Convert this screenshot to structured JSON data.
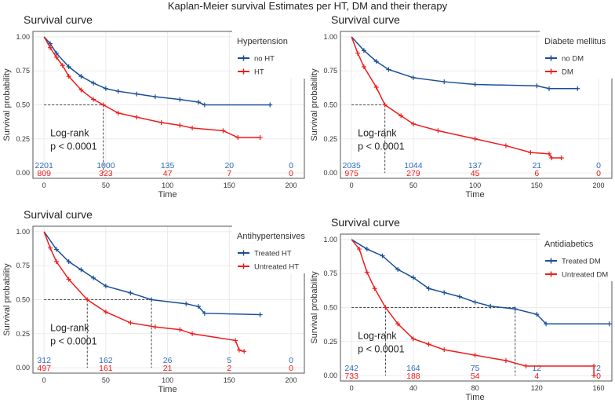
{
  "title": "Kaplan-Meier survival Estimates per HT, DM and their therapy",
  "chart_data": [
    {
      "type": "line",
      "subtype": "kaplan-meier",
      "title": "Survival curve",
      "xlabel": "Time",
      "ylabel": "Survival probability",
      "xlim": [
        0,
        200
      ],
      "xticks": [
        0,
        50,
        100,
        150,
        200
      ],
      "ylim": [
        0,
        1
      ],
      "yticks": [
        "0.00",
        "0.25",
        "0.50",
        "0.75",
        "1.00"
      ],
      "legend_title": "Hypertension",
      "legend_position": "top-right",
      "annotation": [
        "Log-rank",
        "p < 0.0001"
      ],
      "series": [
        {
          "name": "no HT",
          "color": "#1a4f96",
          "points": [
            [
              0,
              1
            ],
            [
              5,
              0.95
            ],
            [
              10,
              0.88
            ],
            [
              20,
              0.78
            ],
            [
              30,
              0.71
            ],
            [
              40,
              0.66
            ],
            [
              50,
              0.62
            ],
            [
              60,
              0.6
            ],
            [
              75,
              0.58
            ],
            [
              90,
              0.56
            ],
            [
              110,
              0.54
            ],
            [
              125,
              0.52
            ],
            [
              130,
              0.5
            ],
            [
              183,
              0.5
            ]
          ],
          "median": null,
          "risk": [
            2201,
            1000,
            135,
            20,
            0
          ]
        },
        {
          "name": "HT",
          "color": "#f01c1c",
          "points": [
            [
              0,
              1
            ],
            [
              5,
              0.92
            ],
            [
              10,
              0.85
            ],
            [
              15,
              0.79
            ],
            [
              20,
              0.71
            ],
            [
              30,
              0.61
            ],
            [
              40,
              0.54
            ],
            [
              48,
              0.5
            ],
            [
              60,
              0.44
            ],
            [
              75,
              0.41
            ],
            [
              95,
              0.37
            ],
            [
              110,
              0.35
            ],
            [
              120,
              0.33
            ],
            [
              145,
              0.31
            ],
            [
              157,
              0.26
            ],
            [
              175,
              0.26
            ]
          ],
          "median": 48,
          "risk": [
            809,
            323,
            47,
            7,
            0
          ]
        }
      ]
    },
    {
      "type": "line",
      "subtype": "kaplan-meier",
      "title": "Survival curve",
      "xlabel": "Time",
      "ylabel": "Survival probability",
      "xlim": [
        0,
        200
      ],
      "xticks": [
        0,
        50,
        100,
        150,
        200
      ],
      "ylim": [
        0,
        1
      ],
      "yticks": [
        "0.00",
        "0.25",
        "0.50",
        "0.75",
        "1.00"
      ],
      "legend_title": "Diabete mellitus",
      "legend_position": "top-right",
      "annotation": [
        "Log-rank",
        "p < 0.0001"
      ],
      "series": [
        {
          "name": "no DM",
          "color": "#1a4f96",
          "points": [
            [
              0,
              1
            ],
            [
              10,
              0.9
            ],
            [
              20,
              0.82
            ],
            [
              30,
              0.76
            ],
            [
              50,
              0.7
            ],
            [
              75,
              0.67
            ],
            [
              100,
              0.65
            ],
            [
              150,
              0.64
            ],
            [
              160,
              0.62
            ],
            [
              183,
              0.62
            ]
          ],
          "median": null,
          "risk": [
            2035,
            1044,
            137,
            21,
            0
          ]
        },
        {
          "name": "DM",
          "color": "#f01c1c",
          "points": [
            [
              0,
              1
            ],
            [
              5,
              0.88
            ],
            [
              10,
              0.78
            ],
            [
              20,
              0.63
            ],
            [
              27,
              0.5
            ],
            [
              40,
              0.42
            ],
            [
              50,
              0.36
            ],
            [
              70,
              0.31
            ],
            [
              100,
              0.25
            ],
            [
              125,
              0.2
            ],
            [
              145,
              0.15
            ],
            [
              160,
              0.14
            ],
            [
              162,
              0.11
            ],
            [
              170,
              0.11
            ]
          ],
          "median": 27,
          "risk": [
            975,
            279,
            45,
            6,
            0
          ]
        }
      ]
    },
    {
      "type": "line",
      "subtype": "kaplan-meier",
      "title": "Survival curve",
      "xlabel": "Time",
      "ylabel": "Survival probability",
      "xlim": [
        0,
        200
      ],
      "xticks": [
        0,
        50,
        100,
        150,
        200
      ],
      "ylim": [
        0,
        1
      ],
      "yticks": [
        "0.00",
        "0.25",
        "0.50",
        "0.75",
        "1.00"
      ],
      "legend_title": "Antihypertensives",
      "legend_position": "top-right",
      "annotation": [
        "Log-rank",
        "p < 0.0001"
      ],
      "series": [
        {
          "name": "Treated HT",
          "color": "#1a4f96",
          "points": [
            [
              0,
              1
            ],
            [
              10,
              0.87
            ],
            [
              20,
              0.78
            ],
            [
              30,
              0.72
            ],
            [
              40,
              0.66
            ],
            [
              50,
              0.6
            ],
            [
              70,
              0.55
            ],
            [
              87,
              0.5
            ],
            [
              115,
              0.47
            ],
            [
              125,
              0.45
            ],
            [
              130,
              0.4
            ],
            [
              175,
              0.39
            ]
          ],
          "median": 87,
          "risk": [
            312,
            162,
            26,
            5,
            0
          ]
        },
        {
          "name": "Untreated HT",
          "color": "#f01c1c",
          "points": [
            [
              0,
              1
            ],
            [
              5,
              0.88
            ],
            [
              10,
              0.78
            ],
            [
              20,
              0.65
            ],
            [
              35,
              0.5
            ],
            [
              50,
              0.41
            ],
            [
              70,
              0.33
            ],
            [
              90,
              0.3
            ],
            [
              110,
              0.28
            ],
            [
              120,
              0.25
            ],
            [
              155,
              0.2
            ],
            [
              158,
              0.13
            ],
            [
              162,
              0.12
            ]
          ],
          "median": 35,
          "risk": [
            497,
            161,
            21,
            2,
            0
          ]
        }
      ]
    },
    {
      "type": "line",
      "subtype": "kaplan-meier",
      "title": "Survival curve",
      "xlabel": "Time",
      "ylabel": "Survival probability",
      "xlim": [
        0,
        160
      ],
      "xticks": [
        0,
        40,
        80,
        120,
        160
      ],
      "ylim": [
        0,
        1
      ],
      "yticks": [
        "0.00",
        "0.25",
        "0.50",
        "0.75",
        "1.00"
      ],
      "legend_title": "Antidiabetics",
      "legend_position": "top-right",
      "annotation": [
        "Log-rank",
        "p < 0.0001"
      ],
      "series": [
        {
          "name": "Treated DM",
          "color": "#1a4f96",
          "points": [
            [
              0,
              1
            ],
            [
              10,
              0.93
            ],
            [
              20,
              0.88
            ],
            [
              30,
              0.78
            ],
            [
              40,
              0.72
            ],
            [
              50,
              0.64
            ],
            [
              60,
              0.61
            ],
            [
              70,
              0.58
            ],
            [
              80,
              0.54
            ],
            [
              90,
              0.51
            ],
            [
              106,
              0.49
            ],
            [
              120,
              0.45
            ],
            [
              126,
              0.38
            ],
            [
              167,
              0.38
            ]
          ],
          "median": 106,
          "risk": [
            242,
            164,
            75,
            12,
            2
          ]
        },
        {
          "name": "Untreated DM",
          "color": "#f01c1c",
          "points": [
            [
              0,
              1
            ],
            [
              5,
              0.93
            ],
            [
              10,
              0.76
            ],
            [
              15,
              0.64
            ],
            [
              22,
              0.5
            ],
            [
              30,
              0.38
            ],
            [
              40,
              0.27
            ],
            [
              50,
              0.23
            ],
            [
              60,
              0.19
            ],
            [
              80,
              0.15
            ],
            [
              100,
              0.11
            ],
            [
              113,
              0.07
            ],
            [
              157,
              0.07
            ],
            [
              157,
              0
            ]
          ],
          "median": 22,
          "risk": [
            733,
            188,
            54,
            4,
            0
          ]
        }
      ]
    }
  ]
}
